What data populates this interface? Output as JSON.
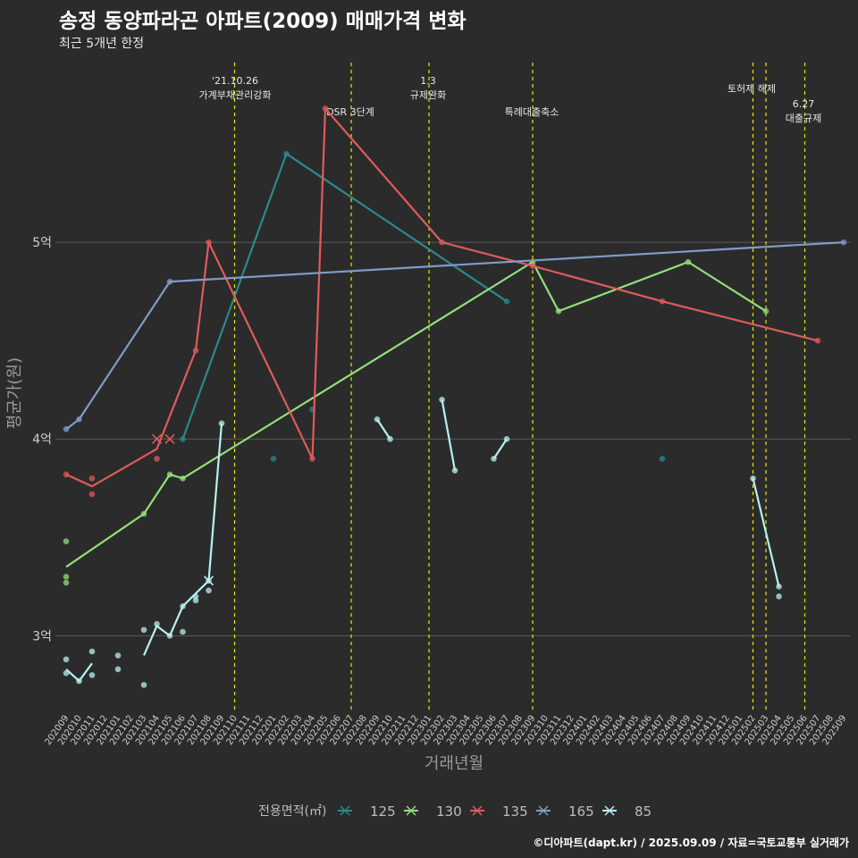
{
  "title": "송정 동양파라곤 아파트(2009) 매매가격 변화",
  "subtitle": "최근 5개년 한정",
  "credit": "©디아파트(dapt.kr) / 2025.09.09 / 자료=국토교통부 실거래가",
  "chart_data": {
    "type": "line",
    "title": "송정 동양파라곤 아파트(2009) 매매가격 변화",
    "subtitle": "최근 5개년 한정",
    "xlabel": "거래년월",
    "ylabel": "평균가(원)",
    "ylim": [
      2.62,
      5.95
    ],
    "y_ticks": [
      {
        "value": 3,
        "label": "3억"
      },
      {
        "value": 4,
        "label": "4억"
      },
      {
        "value": 5,
        "label": "5억"
      }
    ],
    "categories": [
      "202009",
      "202010",
      "202011",
      "202012",
      "202101",
      "202102",
      "202103",
      "202104",
      "202105",
      "202106",
      "202107",
      "202108",
      "202109",
      "202110",
      "202111",
      "202112",
      "202201",
      "202202",
      "202203",
      "202204",
      "202205",
      "202206",
      "202207",
      "202208",
      "202209",
      "202210",
      "202211",
      "202212",
      "202301",
      "202302",
      "202303",
      "202304",
      "202305",
      "202306",
      "202307",
      "202308",
      "202309",
      "202310",
      "202311",
      "202312",
      "202401",
      "202402",
      "202403",
      "202404",
      "202405",
      "202406",
      "202407",
      "202408",
      "202409",
      "202410",
      "202411",
      "202412",
      "202501",
      "202502",
      "202503",
      "202504",
      "202505",
      "202506",
      "202507",
      "202508",
      "202509"
    ],
    "legend_title": "전용면적(㎡)",
    "events": [
      {
        "x": "202110",
        "lines": [
          "'21.10.26",
          "가계부채관리강화"
        ]
      },
      {
        "x": "202207",
        "lines": [
          "DSR 3단계"
        ]
      },
      {
        "x": "202301",
        "lines": [
          "1.3",
          "규제완화"
        ]
      },
      {
        "x": "202309",
        "lines": [
          "특례대출축소"
        ]
      },
      {
        "x": "202502",
        "lines": [
          "토허제 해제"
        ]
      },
      {
        "x": "202503",
        "lines": []
      },
      {
        "x": "202506",
        "lines": [
          "6.27",
          "대출규제"
        ]
      }
    ],
    "series": [
      {
        "name": "125",
        "color": "#2a8a8c",
        "line": [
          [
            "202106",
            4.0
          ],
          [
            "202202",
            5.45
          ],
          [
            "202307",
            4.7
          ]
        ],
        "points": [
          [
            "202106",
            4.0
          ],
          [
            "202201",
            3.9
          ],
          [
            "202202",
            5.45
          ],
          [
            "202204",
            4.15
          ],
          [
            "202307",
            4.7
          ],
          [
            "202407",
            3.9
          ]
        ],
        "crosses": []
      },
      {
        "name": "130",
        "color": "#90e07a",
        "line": [
          [
            "202009",
            3.35
          ],
          [
            "202103",
            3.62
          ],
          [
            "202105",
            3.82
          ],
          [
            "202106",
            3.8
          ],
          [
            "202309",
            4.9
          ],
          [
            "202311",
            4.65
          ],
          [
            "202409",
            4.9
          ],
          [
            "202503",
            4.65
          ]
        ],
        "points": [
          [
            "202009",
            3.48
          ],
          [
            "202009",
            3.3
          ],
          [
            "202009",
            3.27
          ],
          [
            "202103",
            3.62
          ],
          [
            "202105",
            3.82
          ],
          [
            "202106",
            3.8
          ],
          [
            "202309",
            4.9
          ],
          [
            "202311",
            4.65
          ],
          [
            "202409",
            4.9
          ],
          [
            "202503",
            4.65
          ]
        ],
        "crosses": []
      },
      {
        "name": "135",
        "color": "#e05a5a",
        "line": [
          [
            "202009",
            3.82
          ],
          [
            "202011",
            3.76
          ],
          [
            "202104",
            3.95
          ],
          [
            "202107",
            4.45
          ],
          [
            "202108",
            5.0
          ],
          [
            "202204",
            3.9
          ],
          [
            "202205",
            5.68
          ],
          [
            "202302",
            5.0
          ],
          [
            "202309",
            4.88
          ],
          [
            "202407",
            4.7
          ],
          [
            "202507",
            4.5
          ]
        ],
        "points": [
          [
            "202009",
            3.82
          ],
          [
            "202011",
            3.8
          ],
          [
            "202011",
            3.72
          ],
          [
            "202104",
            3.9
          ],
          [
            "202107",
            4.45
          ],
          [
            "202108",
            5.0
          ],
          [
            "202204",
            3.9
          ],
          [
            "202205",
            5.68
          ],
          [
            "202302",
            5.0
          ],
          [
            "202309",
            4.88
          ],
          [
            "202407",
            4.7
          ],
          [
            "202507",
            4.5
          ]
        ],
        "crosses": [
          [
            "202104",
            4.0
          ],
          [
            "202105",
            4.0
          ]
        ]
      },
      {
        "name": "165",
        "color": "#7f9cc8",
        "line": [
          [
            "202009",
            4.05
          ],
          [
            "202010",
            4.1
          ],
          [
            "202105",
            4.8
          ],
          [
            "202509",
            5.0
          ]
        ],
        "points": [
          [
            "202009",
            4.05
          ],
          [
            "202010",
            4.1
          ],
          [
            "202105",
            4.8
          ],
          [
            "202509",
            5.0
          ]
        ],
        "crosses": []
      },
      {
        "name": "85",
        "color": "#b8f0f0",
        "line": [
          [
            "202009",
            2.83
          ],
          [
            "202010",
            2.77
          ],
          [
            "202011",
            2.86
          ]
        ],
        "line2": [
          [
            "202103",
            2.9
          ],
          [
            "202104",
            3.05
          ],
          [
            "202105",
            3.0
          ],
          [
            "202106",
            3.15
          ],
          [
            "202108",
            3.28
          ],
          [
            "202109",
            4.08
          ]
        ],
        "line3": [
          [
            "202209",
            4.1
          ],
          [
            "202210",
            4.0
          ]
        ],
        "line4": [
          [
            "202302",
            4.2
          ],
          [
            "202303",
            3.84
          ]
        ],
        "line5": [
          [
            "202306",
            3.9
          ],
          [
            "202307",
            4.0
          ]
        ],
        "line6": [
          [
            "202502",
            3.8
          ],
          [
            "202504",
            3.25
          ]
        ],
        "points": [
          [
            "202009",
            2.88
          ],
          [
            "202009",
            2.81
          ],
          [
            "202010",
            2.77
          ],
          [
            "202011",
            2.92
          ],
          [
            "202011",
            2.8
          ],
          [
            "202101",
            2.9
          ],
          [
            "202101",
            2.83
          ],
          [
            "202103",
            3.03
          ],
          [
            "202103",
            2.75
          ],
          [
            "202104",
            3.06
          ],
          [
            "202105",
            3.0
          ],
          [
            "202106",
            3.15
          ],
          [
            "202106",
            3.02
          ],
          [
            "202108",
            3.23
          ],
          [
            "202108",
            3.28
          ],
          [
            "202107",
            3.2
          ],
          [
            "202107",
            3.18
          ],
          [
            "202109",
            4.08
          ],
          [
            "202209",
            4.1
          ],
          [
            "202210",
            4.0
          ],
          [
            "202302",
            4.2
          ],
          [
            "202303",
            3.84
          ],
          [
            "202306",
            3.9
          ],
          [
            "202307",
            4.0
          ],
          [
            "202502",
            3.8
          ],
          [
            "202504",
            3.25
          ],
          [
            "202504",
            3.2
          ]
        ],
        "crosses": [
          [
            "202108",
            3.28
          ]
        ]
      }
    ]
  }
}
